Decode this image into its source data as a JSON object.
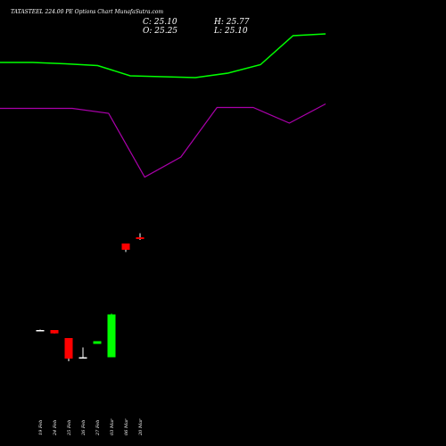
{
  "title": "TATASTEEL 224.00 PE Options  Chart MunafaSutra.com",
  "ohlc": {
    "c": "C: 25.10",
    "h": "H: 25.77",
    "o": "O: 25.25",
    "l": "L: 25.10"
  },
  "colors": {
    "background": "#000000",
    "upper_band": "#00ff00",
    "lower_band": "#aa00aa",
    "up": "#00ff00",
    "down": "#ff0000",
    "neutral": "#ffffff"
  },
  "chart_data": {
    "type": "candlestick",
    "categories": [
      "19 Feb",
      "24 Feb",
      "25 Feb",
      "26 Feb",
      "27 Feb",
      "03 Mar",
      "06 Mar",
      "20 Mar"
    ],
    "candles": [
      {
        "open": 26.0,
        "high": 26.1,
        "low": 25.9,
        "close": 26.0,
        "color": "neutral"
      },
      {
        "open": 26.0,
        "high": 26.0,
        "low": 25.25,
        "close": 25.25,
        "color": "down"
      },
      {
        "open": 24.2,
        "high": 24.2,
        "low": 19.0,
        "close": 19.6,
        "color": "down"
      },
      {
        "open": 19.9,
        "high": 22.1,
        "low": 19.9,
        "close": 19.9,
        "color": "neutral"
      },
      {
        "open": 22.9,
        "high": 23.5,
        "low": 22.9,
        "close": 23.5,
        "color": "up"
      },
      {
        "open": 19.9,
        "high": 29.7,
        "low": 19.9,
        "close": 29.5,
        "color": "up"
      },
      {
        "open": 45.4,
        "high": 45.4,
        "low": 43.5,
        "close": 44.0,
        "color": "down"
      },
      {
        "open": 46.8,
        "high": 47.7,
        "low": 46.2,
        "close": 46.4,
        "color": "down"
      }
    ],
    "upper_band": [
      86.0,
      86.0,
      85.7,
      85.3,
      83.0,
      82.8,
      82.6,
      83.6,
      85.5,
      92.0,
      92.4
    ],
    "lower_band": [
      75.7,
      75.7,
      75.7,
      74.6,
      60.3,
      64.8,
      75.9,
      75.9,
      72.4,
      76.7
    ]
  }
}
